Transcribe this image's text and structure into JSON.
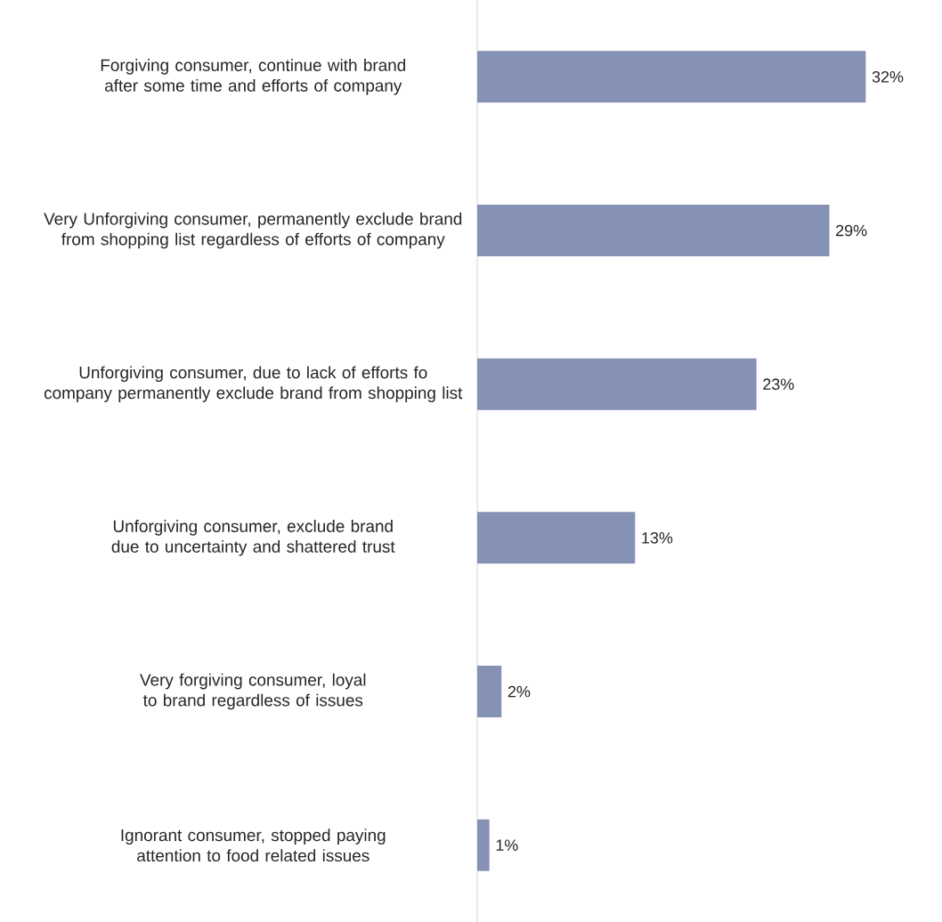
{
  "chart_data": {
    "type": "bar",
    "orientation": "horizontal",
    "categories": [
      "Forgiving consumer, continue with brand after some time and efforts of company",
      "Very Unforgiving consumer, permanently exclude brand from shopping list regardless of efforts of company",
      "Unforgiving consumer, due to lack of efforts fo company permanently exclude brand from shopping list",
      "Unforgiving consumer, exclude brand due to uncertainty and shattered trust",
      "Very forgiving consumer, loyal to brand regardless of issues",
      "Ignorant consumer, stopped paying attention to food related issues"
    ],
    "values": [
      32,
      29,
      23,
      13,
      2,
      1
    ],
    "value_labels": [
      "32%",
      "29%",
      "23%",
      "13%",
      "2%",
      "1%"
    ],
    "color": "#8691b6"
  }
}
